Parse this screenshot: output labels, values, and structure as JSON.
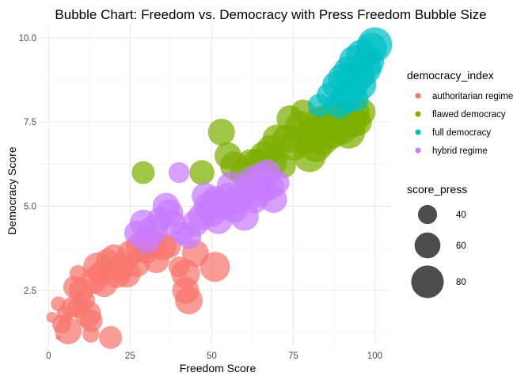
{
  "chart_data": {
    "type": "scatter",
    "title": "Bubble Chart: Freedom vs. Democracy with Press Freedom Bubble Size",
    "xlabel": "Freedom Score",
    "ylabel": "Democracy Score",
    "xlim": [
      -3,
      105
    ],
    "ylim": [
      0.85,
      10.35
    ],
    "xticks": [
      0,
      25,
      50,
      75,
      100
    ],
    "yticks": [
      2.5,
      5.0,
      7.5,
      10.0
    ],
    "ytick_labels": [
      "2.5",
      "5.0",
      "7.5",
      "10.0"
    ],
    "grid": true,
    "legend_position": "right",
    "color_legend": {
      "title": "democracy_index",
      "entries": [
        {
          "name": "authoritarian regime",
          "color": "#F8766D"
        },
        {
          "name": "flawed democracy",
          "color": "#7CAE00"
        },
        {
          "name": "full democracy",
          "color": "#00BFC4"
        },
        {
          "name": "hybrid regime",
          "color": "#C77CFF"
        }
      ]
    },
    "size_legend": {
      "title": "score_press",
      "entries": [
        40,
        60,
        80
      ]
    },
    "series": [
      {
        "name": "authoritarian regime",
        "color": "#F8766D",
        "points": [
          [
            3,
            1.1,
            15
          ],
          [
            1,
            1.7,
            30
          ],
          [
            3,
            2.1,
            40
          ],
          [
            5,
            1.8,
            45
          ],
          [
            4,
            1.5,
            50
          ],
          [
            6,
            1.3,
            70
          ],
          [
            7,
            2.0,
            55
          ],
          [
            8,
            2.6,
            60
          ],
          [
            9,
            3.0,
            45
          ],
          [
            10,
            2.5,
            65
          ],
          [
            11,
            2.2,
            55
          ],
          [
            12,
            1.8,
            70
          ],
          [
            13,
            1.6,
            60
          ],
          [
            14,
            2.8,
            70
          ],
          [
            15,
            3.2,
            75
          ],
          [
            16,
            3.0,
            65
          ],
          [
            17,
            2.7,
            70
          ],
          [
            18,
            3.4,
            60
          ],
          [
            19,
            1.1,
            60
          ],
          [
            20,
            3.5,
            65
          ],
          [
            21,
            3.0,
            75
          ],
          [
            22,
            3.2,
            70
          ],
          [
            24,
            3.0,
            72
          ],
          [
            25,
            3.6,
            68
          ],
          [
            27,
            3.3,
            70
          ],
          [
            28,
            3.8,
            75
          ],
          [
            30,
            3.7,
            72
          ],
          [
            32,
            3.9,
            70
          ],
          [
            33,
            3.4,
            68
          ],
          [
            35,
            3.8,
            72
          ],
          [
            37,
            3.8,
            60
          ],
          [
            40,
            3.2,
            55
          ],
          [
            42,
            2.5,
            70
          ],
          [
            42,
            3.0,
            75
          ],
          [
            43,
            2.2,
            72
          ],
          [
            45,
            3.6,
            70
          ],
          [
            51,
            3.2,
            78
          ],
          [
            13,
            1.2,
            45
          ],
          [
            9,
            2.0,
            55
          ]
        ]
      },
      {
        "name": "flawed democracy",
        "color": "#7CAE00",
        "points": [
          [
            29,
            6.0,
            60
          ],
          [
            47,
            6.0,
            65
          ],
          [
            53,
            7.2,
            70
          ],
          [
            55,
            6.5,
            70
          ],
          [
            57,
            6.2,
            75
          ],
          [
            60,
            6.0,
            75
          ],
          [
            62,
            6.3,
            70
          ],
          [
            64,
            6.3,
            72
          ],
          [
            66,
            6.5,
            75
          ],
          [
            68,
            6.7,
            72
          ],
          [
            69,
            6.3,
            70
          ],
          [
            70,
            7.0,
            75
          ],
          [
            72,
            6.2,
            65
          ],
          [
            73,
            7.0,
            75
          ],
          [
            74,
            7.6,
            70
          ],
          [
            75,
            6.8,
            78
          ],
          [
            77,
            7.4,
            75
          ],
          [
            78,
            7.8,
            65
          ],
          [
            79,
            7.0,
            80
          ],
          [
            80,
            6.5,
            85
          ],
          [
            81,
            7.2,
            82
          ],
          [
            82,
            6.8,
            85
          ],
          [
            83,
            7.5,
            80
          ],
          [
            84,
            7.0,
            85
          ],
          [
            85,
            7.3,
            82
          ],
          [
            86,
            7.6,
            80
          ],
          [
            87,
            7.2,
            85
          ],
          [
            88,
            7.7,
            80
          ],
          [
            89,
            7.5,
            82
          ],
          [
            90,
            7.3,
            80
          ],
          [
            91,
            7.8,
            78
          ],
          [
            92,
            7.2,
            85
          ],
          [
            93,
            7.5,
            80
          ],
          [
            94,
            7.8,
            75
          ],
          [
            95,
            7.5,
            70
          ],
          [
            96,
            7.8,
            72
          ]
        ]
      },
      {
        "name": "full democracy",
        "color": "#00BFC4",
        "points": [
          [
            83,
            8.0,
            60
          ],
          [
            86,
            8.3,
            65
          ],
          [
            88,
            8.6,
            70
          ],
          [
            89,
            8.0,
            70
          ],
          [
            90,
            8.8,
            75
          ],
          [
            91,
            8.2,
            75
          ],
          [
            92,
            9.0,
            80
          ],
          [
            93,
            8.6,
            82
          ],
          [
            94,
            9.3,
            85
          ],
          [
            95,
            8.9,
            85
          ],
          [
            96,
            9.5,
            80
          ],
          [
            97,
            9.1,
            85
          ],
          [
            98,
            9.3,
            82
          ],
          [
            99,
            9.7,
            80
          ],
          [
            100,
            9.8,
            90
          ],
          [
            94,
            8.2,
            70
          ],
          [
            96,
            8.6,
            75
          ]
        ]
      },
      {
        "name": "hybrid regime",
        "color": "#C77CFF",
        "points": [
          [
            27,
            4.2,
            65
          ],
          [
            29,
            4.5,
            70
          ],
          [
            30,
            4.0,
            72
          ],
          [
            32,
            4.3,
            75
          ],
          [
            34,
            4.6,
            65
          ],
          [
            36,
            5.0,
            70
          ],
          [
            37,
            4.8,
            72
          ],
          [
            38,
            4.5,
            68
          ],
          [
            40,
            6.0,
            55
          ],
          [
            41,
            4.2,
            60
          ],
          [
            43,
            4.1,
            65
          ],
          [
            45,
            4.5,
            70
          ],
          [
            47,
            4.7,
            72
          ],
          [
            48,
            5.3,
            70
          ],
          [
            49,
            5.0,
            75
          ],
          [
            50,
            4.8,
            72
          ],
          [
            51,
            5.2,
            70
          ],
          [
            52,
            4.6,
            75
          ],
          [
            54,
            5.0,
            72
          ],
          [
            55,
            5.3,
            70
          ],
          [
            56,
            5.6,
            75
          ],
          [
            57,
            4.9,
            68
          ],
          [
            58,
            5.2,
            72
          ],
          [
            60,
            4.7,
            75
          ],
          [
            61,
            5.5,
            70
          ],
          [
            62,
            5.8,
            68
          ],
          [
            63,
            5.2,
            72
          ],
          [
            64,
            5.4,
            75
          ],
          [
            65,
            5.9,
            70
          ],
          [
            66,
            5.5,
            68
          ],
          [
            67,
            6.0,
            70
          ],
          [
            68,
            5.6,
            72
          ],
          [
            69,
            5.2,
            70
          ],
          [
            70,
            5.7,
            65
          ]
        ]
      }
    ]
  }
}
